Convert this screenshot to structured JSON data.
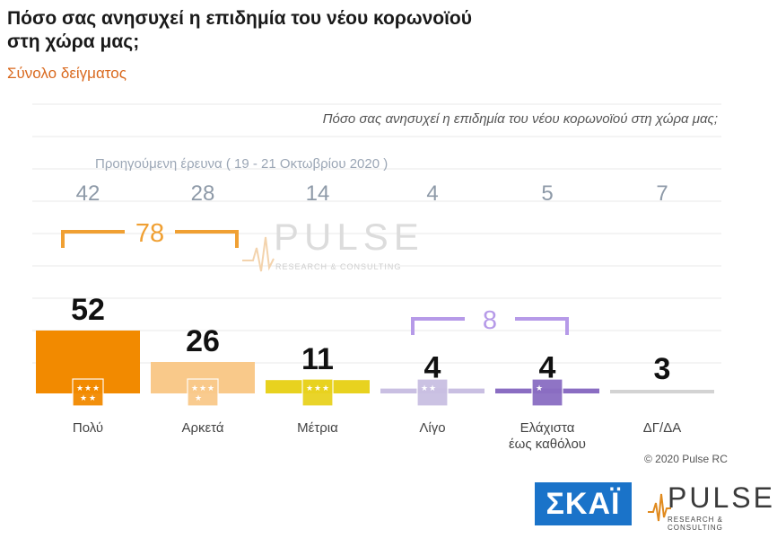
{
  "header": {
    "title": "Πόσο σας ανησυχεί η επιδημία του νέου κορωνοϊού στη χώρα μας;",
    "subtitle": "Σύνολο δείγματος"
  },
  "footer": {
    "copyright": "© 2020 Pulse RC",
    "logo_skai": "ΣΚΑΪ",
    "logo_pulse": "PULSE",
    "logo_pulse_sub": "RESEARCH & CONSULTING"
  },
  "chart_data": {
    "type": "bar",
    "question": "Πόσο σας ανησυχεί η επιδημία του νέου κορωνοϊού στη χώρα μας;",
    "previous_label": "Προηγούμενη έρευνα ( 19 - 21 Οκτωβρίου 2020 )",
    "categories": [
      "Πολύ",
      "Αρκετά",
      "Μέτρια",
      "Λίγο",
      "Ελάχιστα έως καθόλου",
      "ΔΓ/ΔΑ"
    ],
    "category_lines": [
      [
        "Πολύ"
      ],
      [
        "Αρκετά"
      ],
      [
        "Μέτρια"
      ],
      [
        "Λίγο"
      ],
      [
        "Ελάχιστα",
        "έως καθόλου"
      ],
      [
        "ΔΓ/ΔΑ"
      ]
    ],
    "series": [
      {
        "values": [
          52,
          26,
          11,
          4,
          4,
          3
        ]
      },
      {
        "name": "Προηγούμενη έρευνα ( 19 - 21 Οκτωβρίου 2020 )",
        "values": [
          42,
          28,
          14,
          4,
          5,
          7
        ]
      }
    ],
    "colors": [
      "#f28a00",
      "#f9c98a",
      "#e8d21f",
      "#c9bfe2",
      "#8a6dc2",
      "#d3d3d3"
    ],
    "groups": [
      {
        "label": "78",
        "from": 0,
        "to": 1,
        "color": "#f0a033"
      },
      {
        "label": "8",
        "from": 3,
        "to": 4,
        "color": "#b69ae8"
      }
    ],
    "ylim": [
      0,
      52
    ],
    "grid": true,
    "watermark": "PULSE",
    "watermark_sub": "RESEARCH & CONSULTING"
  }
}
